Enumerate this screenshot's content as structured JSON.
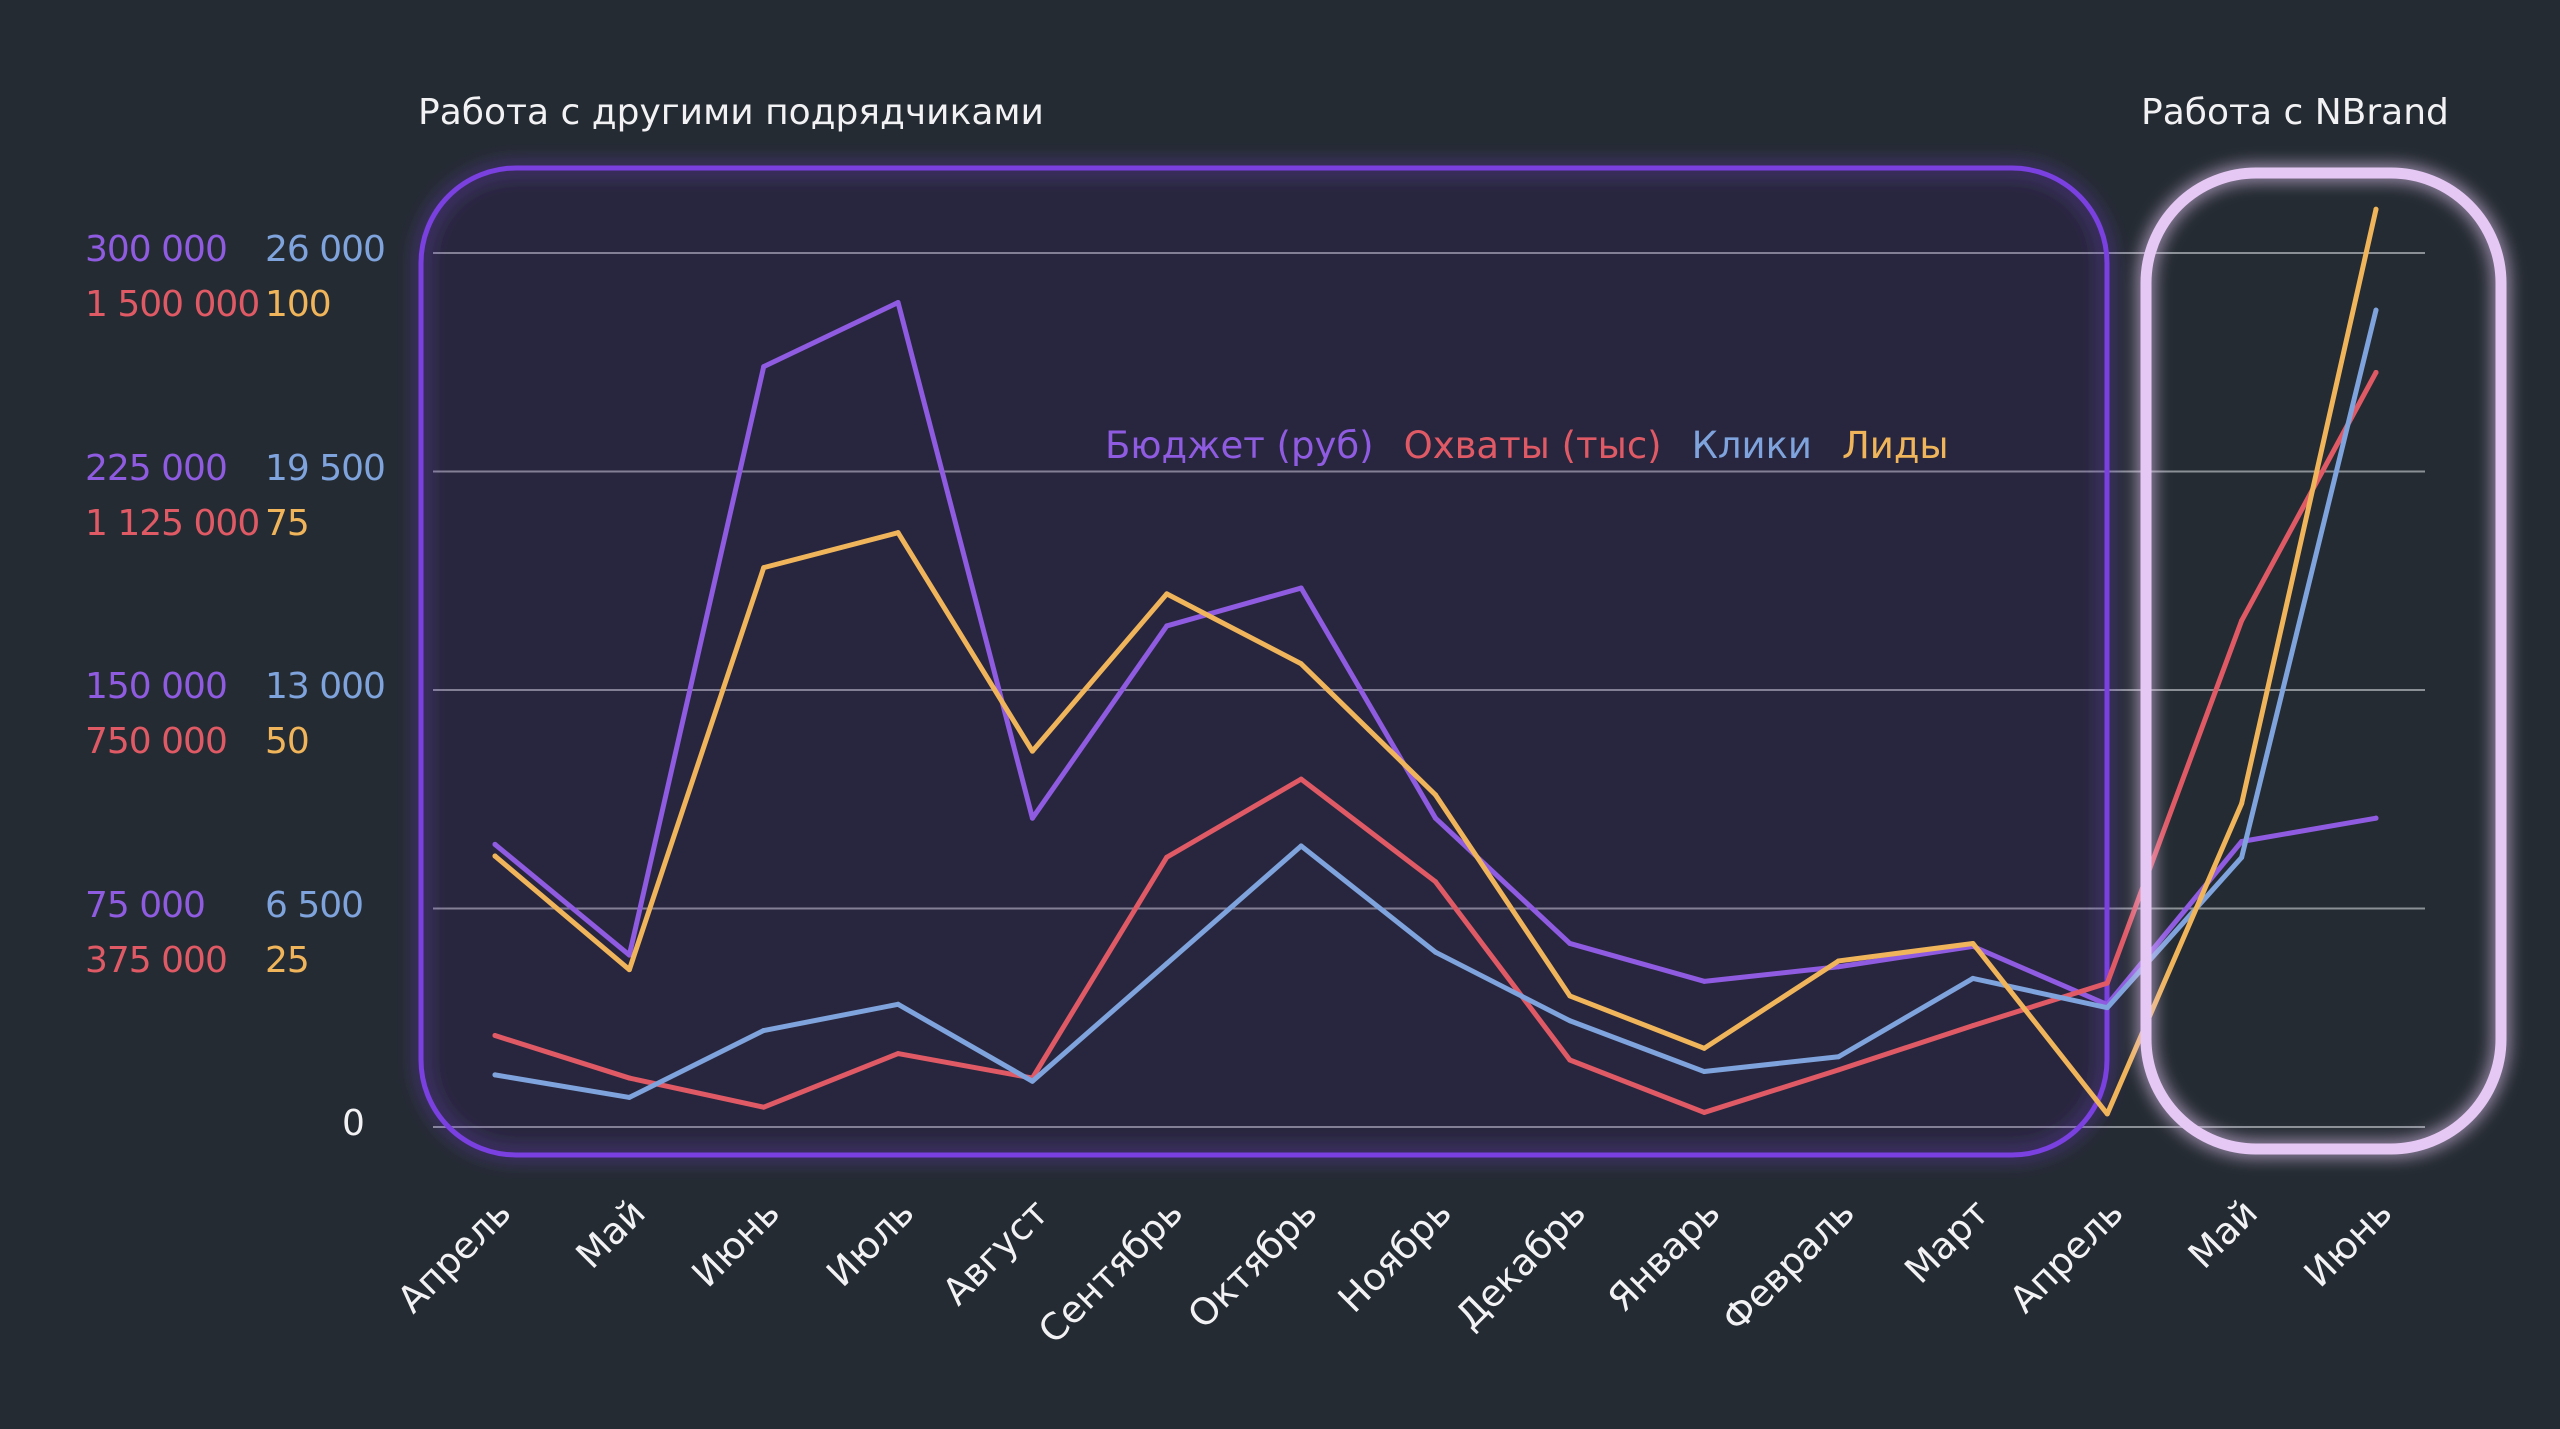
{
  "chart_data": {
    "type": "line",
    "titles": {
      "left_region": "Работа с другими подрядчиками",
      "right_region": "Работа с NBrand"
    },
    "categories": [
      "Апрель",
      "Май",
      "Июнь",
      "Июль",
      "Август",
      "Сентябрь",
      "Октябрь",
      "Ноябрь",
      "Декабрь",
      "Январь",
      "Февраль",
      "Март",
      "Апрель",
      "Май",
      "Июнь"
    ],
    "axes": [
      {
        "series": "Бюджет (руб)",
        "ylim": [
          0,
          300000
        ],
        "ticks": [
          "0",
          "75 000",
          "150 000",
          "225 000",
          "300 000"
        ]
      },
      {
        "series": "Охваты (тыс)",
        "ylim": [
          0,
          1500000
        ],
        "ticks": [
          "0",
          "375 000",
          "750 000",
          "1 125 000",
          "1 500 000"
        ]
      },
      {
        "series": "Клики",
        "ylim": [
          0,
          26000
        ],
        "ticks": [
          "0",
          "6 500",
          "13 000",
          "19 500",
          "26 000"
        ]
      },
      {
        "series": "Лиды",
        "ylim": [
          0,
          100
        ],
        "ticks": [
          "0",
          "25",
          "50",
          "75",
          "100"
        ]
      }
    ],
    "zero_label": "0",
    "series": [
      {
        "name": "Бюджет (руб)",
        "color": "#8f5be0",
        "values": [
          97000,
          59000,
          261000,
          283000,
          106000,
          172000,
          185000,
          106000,
          63000,
          50000,
          55000,
          62000,
          42000,
          98000,
          106000
        ]
      },
      {
        "name": "Охваты (тыс)",
        "color": "#e05a66",
        "values": [
          157000,
          84000,
          34000,
          126000,
          84000,
          463000,
          597000,
          421000,
          115000,
          25000,
          98000,
          174000,
          247000,
          869000,
          1295000
        ]
      },
      {
        "name": "Клики",
        "color": "#7fa3dc",
        "values": [
          1550,
          880,
          2870,
          3650,
          1360,
          4860,
          8360,
          5200,
          3160,
          1650,
          2090,
          4420,
          3550,
          8020,
          24300
        ]
      },
      {
        "name": "Лиды",
        "color": "#f0b55a",
        "values": [
          31,
          18,
          64,
          68,
          43,
          61,
          53,
          38,
          15,
          9,
          19,
          21,
          1.5,
          37,
          105
        ]
      }
    ],
    "highlight_regions": [
      {
        "label": "Работа с другими подрядчиками",
        "from": "Апрель",
        "to": "Апрель",
        "color": "#7b3fe0"
      },
      {
        "label": "Работа с NBrand",
        "from": "Май",
        "to": "Июнь",
        "color": "#e8cbf6"
      }
    ],
    "grid": true,
    "legend": "center"
  }
}
